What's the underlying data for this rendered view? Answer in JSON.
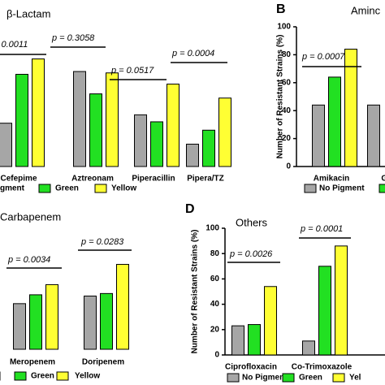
{
  "chart_data": [
    {
      "type": "bar",
      "title": "β-Lactam",
      "categories": [
        "Cefepime",
        "Aztreonam",
        "Piperacillin",
        "Pipera/TZ"
      ],
      "series": [
        {
          "name": "gment",
          "color": "#a6a6a6",
          "values": [
            31,
            68,
            37,
            16
          ]
        },
        {
          "name": "Green",
          "color": "#22e022",
          "values": [
            66,
            52,
            32,
            26
          ]
        },
        {
          "name": "Yellow",
          "color": "#ffff33",
          "values": [
            77,
            67,
            59,
            49
          ]
        }
      ],
      "ylim": [
        0,
        100
      ],
      "annotations": [
        "= 0.0011",
        "p = 0.3058",
        "p = 0.0517",
        "p = 0.0004"
      ]
    },
    {
      "type": "bar",
      "panel": "B",
      "title": "Aminc",
      "ylabel": "Number of Resistant Strains (%)",
      "categories": [
        "Amikacin",
        "Ge"
      ],
      "series": [
        {
          "name": "No Pigment",
          "color": "#a6a6a6",
          "values": [
            44,
            44
          ]
        },
        {
          "color": "#22e022",
          "values": [
            64,
            null
          ]
        },
        {
          "color": "#ffff33",
          "values": [
            84,
            null
          ]
        }
      ],
      "ylim": [
        0,
        100
      ],
      "yticks": [
        0,
        20,
        40,
        60,
        80,
        100
      ],
      "annotations": [
        "p = 0.0007"
      ]
    },
    {
      "type": "bar",
      "title": "Carbapenem",
      "categories": [
        "Meropenem",
        "Doripenem"
      ],
      "series": [
        {
          "color": "#a6a6a6",
          "values": [
            36,
            42
          ]
        },
        {
          "name": "Green",
          "color": "#22e022",
          "values": [
            43,
            44
          ]
        },
        {
          "name": "Yellow",
          "color": "#ffff33",
          "values": [
            51,
            67
          ]
        }
      ],
      "ylim": [
        0,
        100
      ],
      "annotations": [
        "p = 0.0034",
        "p = 0.0283"
      ]
    },
    {
      "type": "bar",
      "panel": "D",
      "title": "Others",
      "ylabel": "Number of Resistant Strains (%)",
      "categories": [
        "Ciprofloxacin",
        "Co-Trimoxazole"
      ],
      "series": [
        {
          "name": "No Pigment",
          "color": "#a6a6a6",
          "values": [
            23,
            11
          ]
        },
        {
          "name": "Green",
          "color": "#22e022",
          "values": [
            24,
            70
          ]
        },
        {
          "name": "Yel",
          "color": "#ffff33",
          "values": [
            54,
            86
          ]
        }
      ],
      "ylim": [
        0,
        100
      ],
      "yticks": [
        0,
        20,
        40,
        60,
        80,
        100
      ],
      "annotations": [
        "p = 0.0026",
        "p = 0.0001"
      ]
    }
  ]
}
